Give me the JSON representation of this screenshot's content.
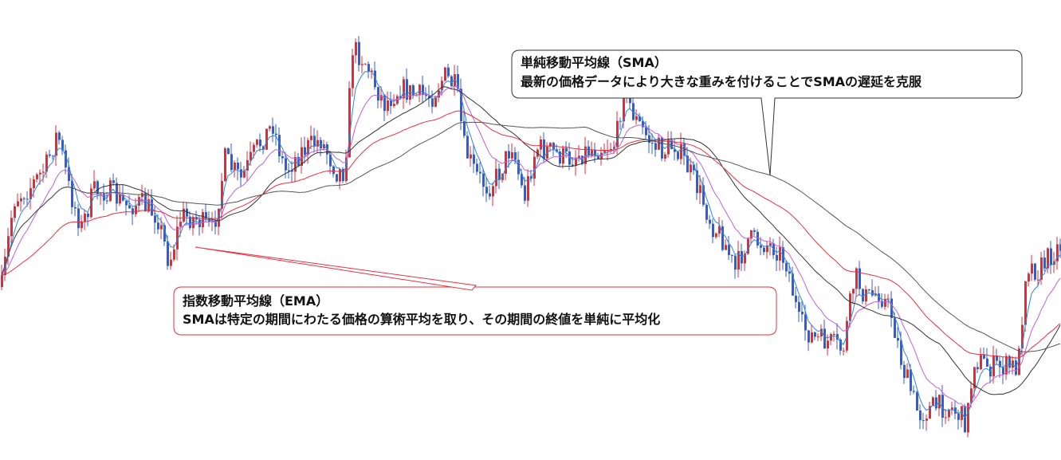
{
  "chart_data": {
    "type": "line",
    "title": "",
    "xlabel": "",
    "ylabel": "",
    "grid": false,
    "candle_colors": {
      "up": "#e8283a",
      "down": "#2c5ce6"
    },
    "line_colors": {
      "ema_fast": "#2e86de",
      "ema_mid": "#c060d8",
      "sma_mid": "#333333",
      "ema_slow": "#e83040",
      "sma_slow": "#555555"
    },
    "price_path": [
      [
        0,
        360
      ],
      [
        15,
        250
      ],
      [
        35,
        235
      ],
      [
        55,
        210
      ],
      [
        70,
        165
      ],
      [
        85,
        240
      ],
      [
        100,
        285
      ],
      [
        115,
        240
      ],
      [
        135,
        240
      ],
      [
        155,
        258
      ],
      [
        175,
        255
      ],
      [
        195,
        270
      ],
      [
        210,
        330
      ],
      [
        225,
        270
      ],
      [
        245,
        275
      ],
      [
        265,
        290
      ],
      [
        280,
        200
      ],
      [
        300,
        225
      ],
      [
        320,
        185
      ],
      [
        340,
        155
      ],
      [
        355,
        215
      ],
      [
        375,
        190
      ],
      [
        400,
        175
      ],
      [
        420,
        215
      ],
      [
        430,
        215
      ],
      [
        440,
        60
      ],
      [
        455,
        75
      ],
      [
        470,
        110
      ],
      [
        480,
        130
      ],
      [
        500,
        110
      ],
      [
        520,
        120
      ],
      [
        540,
        120
      ],
      [
        555,
        95
      ],
      [
        570,
        110
      ],
      [
        580,
        185
      ],
      [
        595,
        220
      ],
      [
        610,
        235
      ],
      [
        625,
        215
      ],
      [
        640,
        180
      ],
      [
        655,
        250
      ],
      [
        670,
        185
      ],
      [
        690,
        190
      ],
      [
        710,
        200
      ],
      [
        730,
        190
      ],
      [
        750,
        185
      ],
      [
        770,
        180
      ],
      [
        780,
        110
      ],
      [
        795,
        150
      ],
      [
        815,
        180
      ],
      [
        830,
        190
      ],
      [
        845,
        180
      ],
      [
        860,
        210
      ],
      [
        875,
        240
      ],
      [
        890,
        280
      ],
      [
        905,
        300
      ],
      [
        920,
        340
      ],
      [
        935,
        300
      ],
      [
        955,
        305
      ],
      [
        970,
        310
      ],
      [
        985,
        330
      ],
      [
        1000,
        405
      ],
      [
        1020,
        425
      ],
      [
        1040,
        430
      ],
      [
        1055,
        440
      ],
      [
        1070,
        345
      ],
      [
        1085,
        375
      ],
      [
        1100,
        365
      ],
      [
        1115,
        390
      ],
      [
        1130,
        460
      ],
      [
        1150,
        520
      ],
      [
        1170,
        510
      ],
      [
        1190,
        510
      ],
      [
        1210,
        530
      ],
      [
        1220,
        450
      ],
      [
        1240,
        460
      ],
      [
        1260,
        460
      ],
      [
        1275,
        460
      ],
      [
        1285,
        330
      ],
      [
        1300,
        340
      ],
      [
        1315,
        320
      ],
      [
        1331,
        305
      ]
    ]
  },
  "callouts": {
    "sma": {
      "title": "単純移動平均線（SMA）",
      "body": "最新の価格データにより大きな重みを付けることでSMAの遅延を克服"
    },
    "ema": {
      "title": "指数移動平均線（EMA）",
      "body": "SMAは特定の期間にわたる価格の算術平均を取り、その期間の終値を単純に平均化"
    }
  }
}
